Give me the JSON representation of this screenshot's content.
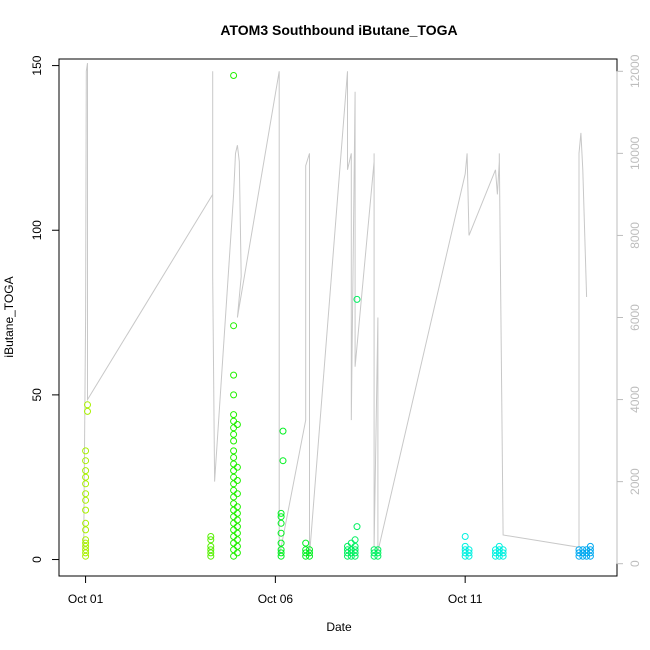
{
  "chart_data": {
    "type": "scatter",
    "title": "ATOM3 Southbound iButane_TOGA",
    "xlabel": "Date",
    "ylabel": "iButane_TOGA",
    "x_ticks": [
      {
        "value": 1,
        "label": "Oct 01"
      },
      {
        "value": 6,
        "label": "Oct 06"
      },
      {
        "value": 11,
        "label": "Oct 11"
      }
    ],
    "xlim": [
      0.3,
      15.0
    ],
    "ylim": [
      -5,
      152
    ],
    "y_ticks": [
      0,
      50,
      100,
      150
    ],
    "y2_ticks": [
      0,
      2000,
      4000,
      6000,
      8000,
      10000,
      12000
    ],
    "y2lim": [
      -300,
      12300
    ],
    "y2_color": "#bdbdbd",
    "grid": false,
    "series": [
      {
        "color": "#a8f000",
        "points": [
          [
            1.0,
            1
          ],
          [
            1.0,
            2
          ],
          [
            1.0,
            3
          ],
          [
            1.0,
            4
          ],
          [
            1.0,
            5
          ],
          [
            1.0,
            6
          ],
          [
            1.0,
            9
          ],
          [
            1.0,
            11
          ],
          [
            1.0,
            15
          ],
          [
            1.0,
            18
          ],
          [
            1.0,
            20
          ],
          [
            1.0,
            23
          ],
          [
            1.0,
            25
          ],
          [
            1.0,
            27
          ],
          [
            1.0,
            30
          ],
          [
            1.0,
            33
          ],
          [
            1.05,
            45
          ],
          [
            1.05,
            47
          ]
        ]
      },
      {
        "color": "#55f000",
        "points": [
          [
            4.3,
            1
          ],
          [
            4.3,
            2
          ],
          [
            4.3,
            3
          ],
          [
            4.3,
            4
          ],
          [
            4.3,
            6
          ],
          [
            4.3,
            7
          ]
        ]
      },
      {
        "color": "#22f000",
        "points": [
          [
            4.9,
            1
          ],
          [
            4.9,
            3
          ],
          [
            4.9,
            5
          ],
          [
            4.9,
            7
          ],
          [
            4.9,
            9
          ],
          [
            4.9,
            11
          ],
          [
            4.9,
            13
          ],
          [
            4.9,
            15
          ],
          [
            4.9,
            17
          ],
          [
            4.9,
            19
          ],
          [
            4.9,
            21
          ],
          [
            4.9,
            23
          ],
          [
            4.9,
            25
          ],
          [
            4.9,
            27
          ],
          [
            4.9,
            29
          ],
          [
            4.9,
            31
          ],
          [
            4.9,
            33
          ],
          [
            4.9,
            36
          ],
          [
            4.9,
            38
          ],
          [
            4.9,
            40
          ],
          [
            4.9,
            42
          ],
          [
            4.9,
            44
          ],
          [
            4.9,
            50
          ],
          [
            4.9,
            56
          ],
          [
            4.9,
            71
          ],
          [
            4.9,
            147
          ],
          [
            5.0,
            2
          ],
          [
            5.0,
            4
          ],
          [
            5.0,
            6
          ],
          [
            5.0,
            8
          ],
          [
            5.0,
            10
          ],
          [
            5.0,
            12
          ],
          [
            5.0,
            14
          ],
          [
            5.0,
            16
          ],
          [
            5.0,
            20
          ],
          [
            5.0,
            24
          ],
          [
            5.0,
            28
          ],
          [
            5.0,
            41
          ]
        ]
      },
      {
        "color": "#00f020",
        "points": [
          [
            6.15,
            1
          ],
          [
            6.15,
            2
          ],
          [
            6.15,
            3
          ],
          [
            6.15,
            5
          ],
          [
            6.15,
            8
          ],
          [
            6.15,
            11
          ],
          [
            6.15,
            13
          ],
          [
            6.15,
            14
          ],
          [
            6.2,
            30
          ],
          [
            6.2,
            39
          ],
          [
            6.8,
            1
          ],
          [
            6.8,
            2
          ],
          [
            6.8,
            3
          ],
          [
            6.8,
            5
          ],
          [
            6.9,
            1
          ],
          [
            6.9,
            2
          ],
          [
            6.9,
            3
          ]
        ]
      },
      {
        "color": "#00f060",
        "points": [
          [
            7.9,
            1
          ],
          [
            7.9,
            2
          ],
          [
            7.9,
            3
          ],
          [
            7.9,
            4
          ],
          [
            8.0,
            1
          ],
          [
            8.0,
            2
          ],
          [
            8.0,
            3
          ],
          [
            8.0,
            5
          ],
          [
            8.1,
            1
          ],
          [
            8.1,
            2
          ],
          [
            8.1,
            3
          ],
          [
            8.1,
            4
          ],
          [
            8.1,
            6
          ],
          [
            8.15,
            10
          ],
          [
            8.15,
            79
          ],
          [
            8.6,
            1
          ],
          [
            8.6,
            2
          ],
          [
            8.6,
            3
          ],
          [
            8.7,
            1
          ],
          [
            8.7,
            2
          ],
          [
            8.7,
            3
          ]
        ]
      },
      {
        "color": "#00f0e0",
        "points": [
          [
            11.0,
            1
          ],
          [
            11.0,
            2
          ],
          [
            11.0,
            3
          ],
          [
            11.0,
            4
          ],
          [
            11.0,
            7
          ],
          [
            11.1,
            1
          ],
          [
            11.1,
            2
          ],
          [
            11.1,
            3
          ],
          [
            11.8,
            1
          ],
          [
            11.8,
            2
          ],
          [
            11.8,
            3
          ],
          [
            11.9,
            1
          ],
          [
            11.9,
            2
          ],
          [
            11.9,
            3
          ],
          [
            11.9,
            4
          ],
          [
            12.0,
            1
          ],
          [
            12.0,
            2
          ],
          [
            12.0,
            3
          ]
        ]
      },
      {
        "color": "#00a8f0",
        "points": [
          [
            14.0,
            1
          ],
          [
            14.0,
            2
          ],
          [
            14.0,
            3
          ],
          [
            14.1,
            1
          ],
          [
            14.1,
            2
          ],
          [
            14.1,
            3
          ],
          [
            14.2,
            1
          ],
          [
            14.2,
            2
          ],
          [
            14.2,
            3
          ],
          [
            14.3,
            1
          ],
          [
            14.3,
            2
          ],
          [
            14.3,
            3
          ],
          [
            14.3,
            4
          ]
        ]
      }
    ],
    "altitude_track": {
      "color": "#c8c8c8",
      "points": [
        [
          0.95,
          400
        ],
        [
          1.0,
          6000
        ],
        [
          1.02,
          12000
        ],
        [
          1.05,
          12200
        ],
        [
          1.05,
          4000
        ],
        [
          4.35,
          9000
        ],
        [
          4.35,
          12000
        ],
        [
          4.35,
          7000
        ],
        [
          4.4,
          2000
        ],
        [
          4.9,
          9000
        ],
        [
          4.95,
          10000
        ],
        [
          5.0,
          10200
        ],
        [
          5.05,
          9800
        ],
        [
          5.1,
          7000
        ],
        [
          5.0,
          6000
        ],
        [
          6.1,
          12000
        ],
        [
          6.1,
          9600
        ],
        [
          6.1,
          200
        ],
        [
          6.15,
          400
        ],
        [
          6.8,
          3500
        ],
        [
          6.8,
          9700
        ],
        [
          6.9,
          10000
        ],
        [
          6.9,
          3000
        ],
        [
          6.9,
          200
        ],
        [
          7.9,
          12000
        ],
        [
          7.9,
          9600
        ],
        [
          8.0,
          10000
        ],
        [
          8.0,
          3500
        ],
        [
          8.1,
          11500
        ],
        [
          8.1,
          4800
        ],
        [
          8.6,
          9800
        ],
        [
          8.6,
          10000
        ],
        [
          8.6,
          400
        ],
        [
          8.7,
          6000
        ],
        [
          8.7,
          300
        ],
        [
          11.0,
          9500
        ],
        [
          11.05,
          10000
        ],
        [
          11.1,
          8000
        ],
        [
          11.8,
          9600
        ],
        [
          11.85,
          9000
        ],
        [
          11.9,
          9800
        ],
        [
          11.9,
          10000
        ],
        [
          12.0,
          700
        ],
        [
          14.0,
          400
        ],
        [
          14.0,
          10000
        ],
        [
          14.05,
          10500
        ],
        [
          14.1,
          9600
        ],
        [
          14.2,
          6500
        ]
      ]
    }
  }
}
